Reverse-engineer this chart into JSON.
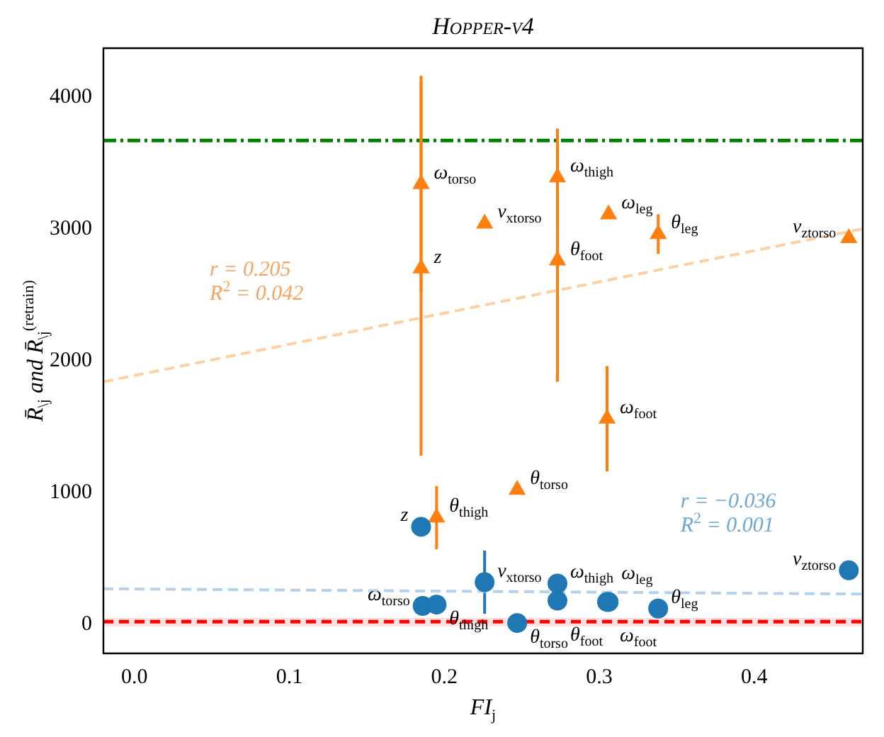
{
  "chart_data": {
    "type": "scatter",
    "title": "Hopper-v4",
    "xlabel": "FI$_{j}$",
    "ylabel": "R̄$_{\\j}$ and R̄$_{\\j}$$^{(retrain)}$",
    "xlim": [
      -0.02,
      0.47
    ],
    "xticks": [
      {
        "value": 0,
        "label": "0.0"
      },
      0.1,
      0.2,
      0.3,
      0.4
    ],
    "ylim": [
      -220,
      4370
    ],
    "yticks": [
      0,
      1000,
      2000,
      3000,
      4000
    ],
    "grid": false,
    "legend": false,
    "series": [
      {
        "type": "scatter",
        "color": "#1f77b4",
        "marker": "circle",
        "x": [
          0.185,
          0.186,
          0.195,
          0.226,
          0.273,
          0.273,
          0.247,
          0.306,
          0.305,
          0.338,
          0.461
        ],
        "values": [
          740,
          140,
          150,
          320,
          310,
          180,
          10,
          170,
          170,
          120,
          410
        ],
        "errors": [
          null,
          null,
          null,
          240,
          null,
          null,
          null,
          null,
          null,
          null,
          null
        ],
        "value_labels": [
          "z",
          "ω$_{torso}$",
          "θ$_{thigh}$",
          "v$_{x}$$_{torso}$",
          "ω$_{thigh}$",
          "θ$_{foot}$",
          "θ$_{torso}$",
          "ω$_{leg}$",
          "ω$_{foot}$",
          "θ$_{leg}$",
          "v$_{z}$$_{torso}$"
        ]
      },
      {
        "type": "scatter",
        "color": "#ff7f0e",
        "marker": "triangle",
        "x": [
          0.185,
          0.185,
          0.226,
          0.273,
          0.273,
          0.306,
          0.338,
          0.461,
          0.305,
          0.247,
          0.195
        ],
        "values": [
          3340,
          2700,
          3040,
          3390,
          2760,
          3110,
          2960,
          2930,
          1560,
          1020,
          810
        ],
        "errors": [
          820,
          1420,
          null,
          370,
          920,
          null,
          150,
          null,
          400,
          null,
          240
        ],
        "value_labels": [
          "ω$_{torso}$",
          "z",
          "v$_{x}$$_{torso}$",
          "ω$_{thigh}$",
          "θ$_{foot}$",
          "ω$_{leg}$",
          "θ$_{leg}$",
          "v$_{z}$$_{torso}$",
          "ω$_{foot}$",
          "θ$_{torso}$",
          "θ$_{thigh}$"
        ]
      },
      {
        "type": "line",
        "color": "#fdd0a2",
        "marker": "none",
        "line_style": "dashed",
        "x": [
          -0.02,
          0.47
        ],
        "values": [
          1840,
          3000
        ]
      },
      {
        "type": "line",
        "color": "#b3d1ea",
        "marker": "none",
        "line_style": "dashed",
        "x": [
          -0.02,
          0.47
        ],
        "values": [
          270,
          230
        ]
      }
    ],
    "ref_lines": [
      {
        "axis": "y",
        "value": 20,
        "color": "#ff0000",
        "line_style": "dashed"
      },
      {
        "axis": "y",
        "value": 3670,
        "color": "#008000",
        "line_style": "dashdot"
      }
    ],
    "bands": [
      {
        "axis": "y",
        "from": -15,
        "to": 50,
        "color": "#fbe0e0"
      }
    ],
    "annotations": [
      "r = 0.205",
      "R$^{2}$ = 0.042",
      "r = −0.036",
      "R$^{2}$ = 0.001"
    ]
  }
}
